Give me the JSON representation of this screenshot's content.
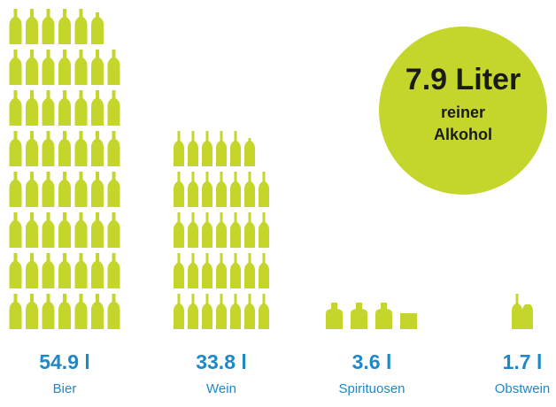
{
  "chart_data": {
    "type": "pictogram",
    "categories": [
      "Bier",
      "Wein",
      "Spirituosen",
      "Obstwein"
    ],
    "values": [
      54.9,
      33.8,
      3.6,
      1.7
    ],
    "value_labels": [
      "54.9 l",
      "33.8 l",
      "3.6 l",
      "1.7 l"
    ],
    "color": "#c4d62b",
    "label_color": "#1e88c8",
    "annotation": {
      "lines": [
        "7.9 Liter",
        "reiner",
        "Alkohol"
      ],
      "color": "#c4d62b"
    }
  }
}
